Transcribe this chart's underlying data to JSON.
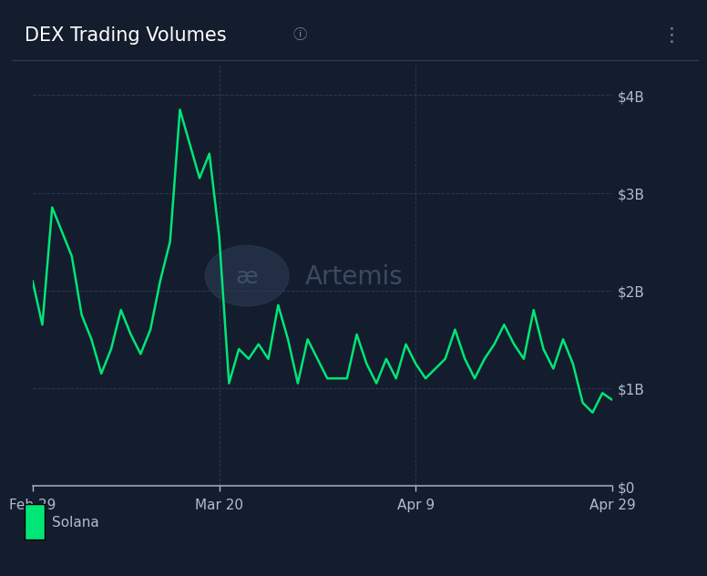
{
  "title": "DEX Trading Volumes",
  "background_color": "#141d2e",
  "panel_bg_color": "#141d2e",
  "plot_bg_color": "#141d2e",
  "header_bg_color": "#1a2336",
  "line_color": "#00e676",
  "grid_color": "#2a3855",
  "text_color": "#b0bcd4",
  "axis_line_color": "#9aa8bc",
  "legend_label": "Solana",
  "legend_color": "#00e676",
  "x_tick_labels": [
    "Feb 29",
    "Mar 20",
    "Apr 9",
    "Apr 29"
  ],
  "y_tick_labels": [
    "$0",
    "$1B",
    "$2B",
    "$3B",
    "$4B"
  ],
  "y_tick_values": [
    0,
    1,
    2,
    3,
    4
  ],
  "ylim": [
    0,
    4.3
  ],
  "watermark_text": "Artemis",
  "dates": [
    0,
    1,
    2,
    3,
    4,
    5,
    6,
    7,
    8,
    9,
    10,
    11,
    12,
    13,
    14,
    15,
    16,
    17,
    18,
    19,
    20,
    21,
    22,
    23,
    24,
    25,
    26,
    27,
    28,
    29,
    30,
    31,
    32,
    33,
    34,
    35,
    36,
    37,
    38,
    39,
    40,
    41,
    42,
    43,
    44,
    45,
    46,
    47,
    48,
    49,
    50,
    51,
    52,
    53,
    54,
    55,
    56,
    57,
    58,
    59
  ],
  "values": [
    2.1,
    1.65,
    2.85,
    2.6,
    2.35,
    1.75,
    1.5,
    1.15,
    1.4,
    1.8,
    1.55,
    1.35,
    1.6,
    2.1,
    2.5,
    3.85,
    3.5,
    3.15,
    3.4,
    2.55,
    1.05,
    1.4,
    1.3,
    1.45,
    1.3,
    1.85,
    1.5,
    1.05,
    1.5,
    1.3,
    1.1,
    1.1,
    1.1,
    1.55,
    1.25,
    1.05,
    1.3,
    1.1,
    1.45,
    1.25,
    1.1,
    1.2,
    1.3,
    1.6,
    1.3,
    1.1,
    1.3,
    1.45,
    1.65,
    1.45,
    1.3,
    1.8,
    1.4,
    1.2,
    1.5,
    1.25,
    0.85,
    0.75,
    0.95,
    0.88
  ],
  "x_tick_positions": [
    0,
    19,
    39,
    59
  ],
  "title_fontsize": 15,
  "tick_fontsize": 11,
  "legend_fontsize": 11,
  "line_width": 1.8
}
